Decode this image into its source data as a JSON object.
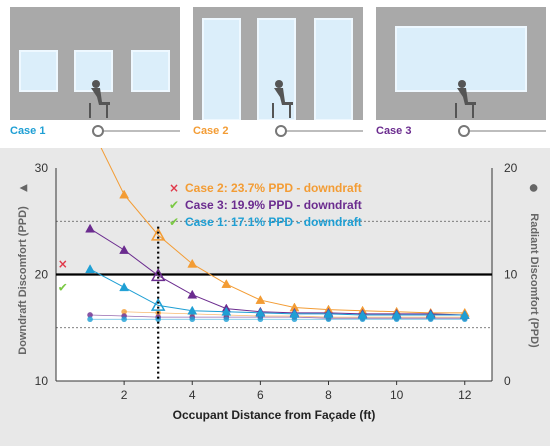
{
  "cases": [
    {
      "label": "Case 1",
      "color": "#1e9fd4",
      "slider_value": 0
    },
    {
      "label": "Case 2",
      "color": "#f39c34",
      "slider_value": 0
    },
    {
      "label": "Case 3",
      "color": "#6b2c8f",
      "slider_value": 0
    }
  ],
  "chart_data": {
    "type": "line",
    "xlabel": "Occupant Distance from Façade (ft)",
    "ylabel_left": "Downdraft Discomfort (PPD)",
    "ylabel_right": "Radiant Discomfort (PPD)",
    "left_axis_marker": "▲",
    "right_axis_marker": "●",
    "xlim": [
      0,
      12.8
    ],
    "x_ticks": [
      2,
      4,
      6,
      8,
      10,
      12
    ],
    "ylim_left": [
      10,
      30
    ],
    "y_ticks_left": [
      10,
      20,
      30
    ],
    "ylim_right": [
      0,
      20
    ],
    "y_ticks_right": [
      0,
      10,
      20
    ],
    "threshold_left": 20,
    "selected_x": 3,
    "background": "#e8e8e8",
    "series": [
      {
        "name": "Case 2",
        "color": "#f39c34",
        "downdraft": {
          "x": [
            2,
            3,
            4,
            5,
            6,
            7,
            8,
            9,
            10,
            11,
            12
          ],
          "y": [
            27.5,
            23.7,
            21.0,
            19.1,
            17.6,
            16.9,
            16.7,
            16.6,
            16.5,
            16.4,
            16.4
          ]
        },
        "radiant": {
          "x": [
            2,
            3,
            4,
            5,
            6,
            7,
            8,
            9,
            10,
            11,
            12
          ],
          "y": [
            6.5,
            6.4,
            6.3,
            6.2,
            6.1,
            6.1,
            6.0,
            6.0,
            6.0,
            6.0,
            6.0
          ]
        }
      },
      {
        "name": "Case 3",
        "color": "#6b2c8f",
        "downdraft": {
          "x": [
            1,
            2,
            3,
            4,
            5,
            6,
            7,
            8,
            9,
            10,
            11,
            12
          ],
          "y": [
            24.3,
            22.3,
            19.9,
            18.1,
            16.8,
            16.5,
            16.4,
            16.4,
            16.3,
            16.3,
            16.3,
            16.2
          ]
        },
        "radiant": {
          "x": [
            1,
            2,
            3,
            4,
            5,
            6,
            7,
            8,
            9,
            10,
            11,
            12
          ],
          "y": [
            6.2,
            6.1,
            6.0,
            6.0,
            6.0,
            6.0,
            6.0,
            5.9,
            5.9,
            5.9,
            5.9,
            5.9
          ]
        }
      },
      {
        "name": "Case 1",
        "color": "#1e9fd4",
        "downdraft": {
          "x": [
            1,
            2,
            3,
            4,
            5,
            6,
            7,
            8,
            9,
            10,
            11,
            12
          ],
          "y": [
            20.5,
            18.8,
            17.1,
            16.6,
            16.5,
            16.4,
            16.3,
            16.3,
            16.2,
            16.2,
            16.2,
            16.2
          ]
        },
        "radiant": {
          "x": [
            1,
            2,
            3,
            4,
            5,
            6,
            7,
            8,
            9,
            10,
            11,
            12
          ],
          "y": [
            5.8,
            5.8,
            5.8,
            5.8,
            5.8,
            5.8,
            5.8,
            5.8,
            5.8,
            5.8,
            5.8,
            5.8
          ]
        }
      }
    ],
    "annotations": [
      {
        "text": "Case 2: 23.7% PPD - downdraft",
        "color": "#f39c34",
        "mark": "×",
        "mark_color": "#e0394a"
      },
      {
        "text": "Case 3: 19.9% PPD - downdraft",
        "color": "#6b2c8f",
        "mark": "✔",
        "mark_color": "#7ac943"
      },
      {
        "text": "Case 1: 17.1% PPD - downdraft",
        "color": "#1e9fd4",
        "mark": "✔",
        "mark_color": "#7ac943"
      }
    ],
    "left_status_markers": [
      {
        "mark": "×",
        "color": "#e0394a",
        "value": 21.0
      },
      {
        "mark": "✔",
        "color": "#7ac943",
        "value": 18.8
      }
    ]
  }
}
